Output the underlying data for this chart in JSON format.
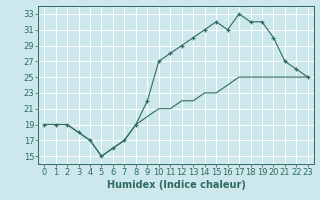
{
  "title": "",
  "xlabel": "Humidex (Indice chaleur)",
  "ylabel": "",
  "background_color": "#cce8ec",
  "grid_color": "#ffffff",
  "line_color": "#2e6b5e",
  "xlim": [
    -0.5,
    23.5
  ],
  "ylim": [
    14,
    34
  ],
  "xticks": [
    0,
    1,
    2,
    3,
    4,
    5,
    6,
    7,
    8,
    9,
    10,
    11,
    12,
    13,
    14,
    15,
    16,
    17,
    18,
    19,
    20,
    21,
    22,
    23
  ],
  "yticks": [
    15,
    17,
    19,
    21,
    23,
    25,
    27,
    29,
    31,
    33
  ],
  "series1_x": [
    0,
    1,
    2,
    3,
    4,
    5,
    6,
    7,
    8,
    9,
    10,
    11,
    12,
    13,
    14,
    15,
    16,
    17,
    18,
    19,
    20,
    21,
    22,
    23
  ],
  "series1_y": [
    19,
    19,
    19,
    18,
    17,
    15,
    16,
    17,
    19,
    22,
    27,
    28,
    29,
    30,
    31,
    32,
    31,
    33,
    32,
    32,
    30,
    27,
    26,
    25
  ],
  "series2_x": [
    0,
    1,
    2,
    3,
    4,
    5,
    6,
    7,
    8,
    9,
    10,
    11,
    12,
    13,
    14,
    15,
    16,
    17,
    18,
    19,
    20,
    21,
    22,
    23
  ],
  "series2_y": [
    19,
    19,
    19,
    18,
    17,
    15,
    16,
    17,
    19,
    20,
    21,
    21,
    22,
    22,
    23,
    23,
    24,
    25,
    25,
    25,
    25,
    25,
    25,
    25
  ],
  "font_color": "#2e6b5e",
  "tick_fontsize": 6,
  "xlabel_fontsize": 7
}
